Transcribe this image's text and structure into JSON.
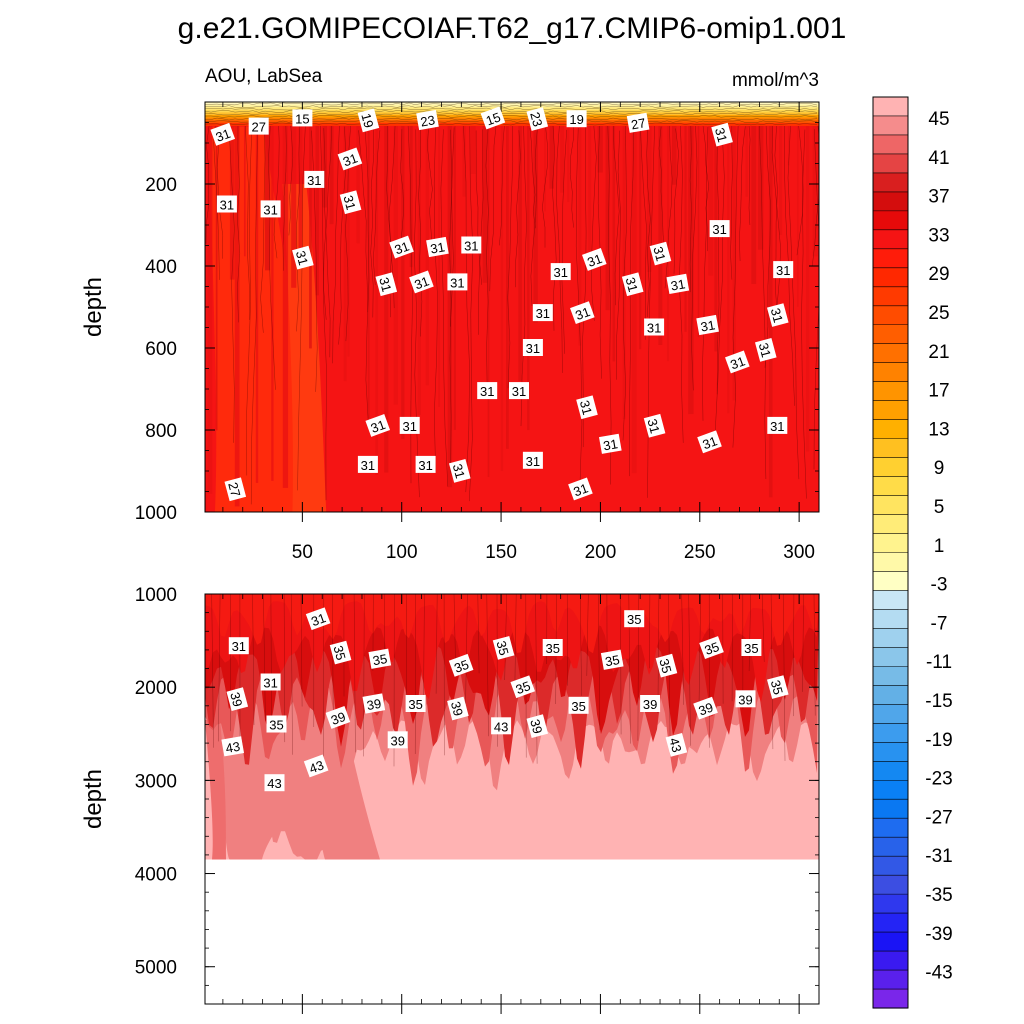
{
  "chart_data": {
    "type": "heatmap",
    "title": "g.e21.GOMIPECOIAF.T62_g17.CMIP6-omip1.001",
    "left_subtitle": "AOU, LabSea",
    "right_subtitle": "mmol/m^3",
    "x_ticks": [
      50,
      100,
      150,
      200,
      250,
      300
    ],
    "x_range": [
      1,
      310
    ],
    "panels": [
      {
        "name": "upper",
        "ylabel": "depth",
        "ylim": [
          0,
          1000
        ],
        "y_ticks": [
          200,
          400,
          600,
          800,
          1000
        ],
        "dominant_value": 31,
        "contour_labels": [
          {
            "x": 10,
            "depth": 80,
            "v": "31"
          },
          {
            "x": 28,
            "depth": 60,
            "v": "27"
          },
          {
            "x": 50,
            "depth": 40,
            "v": "15"
          },
          {
            "x": 83,
            "depth": 45,
            "v": "19"
          },
          {
            "x": 113,
            "depth": 45,
            "v": "23"
          },
          {
            "x": 146,
            "depth": 40,
            "v": "15"
          },
          {
            "x": 168,
            "depth": 42,
            "v": "23"
          },
          {
            "x": 188,
            "depth": 42,
            "v": "19"
          },
          {
            "x": 219,
            "depth": 52,
            "v": "27"
          },
          {
            "x": 261,
            "depth": 80,
            "v": "31"
          },
          {
            "x": 74,
            "depth": 140,
            "v": "31"
          },
          {
            "x": 56,
            "depth": 190,
            "v": "31"
          },
          {
            "x": 74,
            "depth": 245,
            "v": "31"
          },
          {
            "x": 12,
            "depth": 250,
            "v": "31"
          },
          {
            "x": 34,
            "depth": 262,
            "v": "31"
          },
          {
            "x": 100,
            "depth": 355,
            "v": "31"
          },
          {
            "x": 118,
            "depth": 355,
            "v": "31"
          },
          {
            "x": 135,
            "depth": 350,
            "v": "31"
          },
          {
            "x": 50,
            "depth": 380,
            "v": "31"
          },
          {
            "x": 180,
            "depth": 415,
            "v": "31"
          },
          {
            "x": 197,
            "depth": 385,
            "v": "31"
          },
          {
            "x": 230,
            "depth": 370,
            "v": "31"
          },
          {
            "x": 260,
            "depth": 310,
            "v": "31"
          },
          {
            "x": 292,
            "depth": 410,
            "v": "31"
          },
          {
            "x": 92,
            "depth": 445,
            "v": "31"
          },
          {
            "x": 110,
            "depth": 440,
            "v": "31"
          },
          {
            "x": 128,
            "depth": 440,
            "v": "31"
          },
          {
            "x": 216,
            "depth": 445,
            "v": "31"
          },
          {
            "x": 239,
            "depth": 445,
            "v": "31"
          },
          {
            "x": 171,
            "depth": 515,
            "v": "31"
          },
          {
            "x": 191,
            "depth": 515,
            "v": "31"
          },
          {
            "x": 227,
            "depth": 550,
            "v": "31"
          },
          {
            "x": 254,
            "depth": 545,
            "v": "31"
          },
          {
            "x": 289,
            "depth": 520,
            "v": "31"
          },
          {
            "x": 166,
            "depth": 600,
            "v": "31"
          },
          {
            "x": 269,
            "depth": 635,
            "v": "31"
          },
          {
            "x": 283,
            "depth": 605,
            "v": "31"
          },
          {
            "x": 143,
            "depth": 705,
            "v": "31"
          },
          {
            "x": 159,
            "depth": 705,
            "v": "31"
          },
          {
            "x": 193,
            "depth": 745,
            "v": "31"
          },
          {
            "x": 88,
            "depth": 790,
            "v": "31"
          },
          {
            "x": 104,
            "depth": 790,
            "v": "31"
          },
          {
            "x": 227,
            "depth": 790,
            "v": "31"
          },
          {
            "x": 289,
            "depth": 790,
            "v": "31"
          },
          {
            "x": 205,
            "depth": 835,
            "v": "31"
          },
          {
            "x": 255,
            "depth": 830,
            "v": "31"
          },
          {
            "x": 83,
            "depth": 885,
            "v": "31"
          },
          {
            "x": 112,
            "depth": 885,
            "v": "31"
          },
          {
            "x": 129,
            "depth": 900,
            "v": "31"
          },
          {
            "x": 166,
            "depth": 875,
            "v": "31"
          },
          {
            "x": 190,
            "depth": 945,
            "v": "31"
          },
          {
            "x": 16,
            "depth": 945,
            "v": "27"
          }
        ]
      },
      {
        "name": "lower",
        "ylabel": "depth",
        "ylim": [
          1000,
          5400
        ],
        "y_ticks": [
          1000,
          2000,
          3000,
          4000,
          5000
        ],
        "bottom_depth": 3850,
        "contour_labels": [
          {
            "x": 58,
            "depth": 1270,
            "v": "31"
          },
          {
            "x": 217,
            "depth": 1270,
            "v": "35"
          },
          {
            "x": 18,
            "depth": 1560,
            "v": "31"
          },
          {
            "x": 69,
            "depth": 1630,
            "v": "35"
          },
          {
            "x": 89,
            "depth": 1700,
            "v": "35"
          },
          {
            "x": 130,
            "depth": 1770,
            "v": "35"
          },
          {
            "x": 151,
            "depth": 1580,
            "v": "35"
          },
          {
            "x": 176,
            "depth": 1580,
            "v": "35"
          },
          {
            "x": 206,
            "depth": 1710,
            "v": "35"
          },
          {
            "x": 233,
            "depth": 1770,
            "v": "35"
          },
          {
            "x": 256,
            "depth": 1580,
            "v": "35"
          },
          {
            "x": 276,
            "depth": 1580,
            "v": "35"
          },
          {
            "x": 17,
            "depth": 2130,
            "v": "39"
          },
          {
            "x": 34,
            "depth": 1950,
            "v": "31"
          },
          {
            "x": 37,
            "depth": 2400,
            "v": "35"
          },
          {
            "x": 68,
            "depth": 2330,
            "v": "39"
          },
          {
            "x": 86,
            "depth": 2180,
            "v": "39"
          },
          {
            "x": 107,
            "depth": 2180,
            "v": "35"
          },
          {
            "x": 128,
            "depth": 2230,
            "v": "39"
          },
          {
            "x": 150,
            "depth": 2420,
            "v": "43"
          },
          {
            "x": 161,
            "depth": 2000,
            "v": "35"
          },
          {
            "x": 168,
            "depth": 2420,
            "v": "39"
          },
          {
            "x": 189,
            "depth": 2200,
            "v": "35"
          },
          {
            "x": 225,
            "depth": 2180,
            "v": "39"
          },
          {
            "x": 238,
            "depth": 2620,
            "v": "43"
          },
          {
            "x": 253,
            "depth": 2230,
            "v": "39"
          },
          {
            "x": 273,
            "depth": 2130,
            "v": "39"
          },
          {
            "x": 289,
            "depth": 2000,
            "v": "35"
          },
          {
            "x": 15,
            "depth": 2640,
            "v": "43"
          },
          {
            "x": 98,
            "depth": 2570,
            "v": "39"
          },
          {
            "x": 57,
            "depth": 2850,
            "v": "43"
          },
          {
            "x": 36,
            "depth": 3030,
            "v": "43"
          }
        ]
      }
    ],
    "colorbar": {
      "labels": [
        "45",
        "41",
        "37",
        "33",
        "29",
        "25",
        "21",
        "17",
        "13",
        "9",
        "5",
        "1",
        "-3",
        "-7",
        "-11",
        "-15",
        "-19",
        "-23",
        "-27",
        "-31",
        "-35",
        "-39",
        "-43"
      ],
      "colors": [
        "#ffb3b3",
        "#f58c8c",
        "#ee6666",
        "#e54444",
        "#d91f1f",
        "#d40d0d",
        "#e60a0a",
        "#f51414",
        "#ff1c0a",
        "#ff2800",
        "#ff3a00",
        "#ff4c00",
        "#ff5e00",
        "#ff7000",
        "#ff8200",
        "#ff9400",
        "#ffa000",
        "#ffb000",
        "#ffc020",
        "#ffd030",
        "#ffdc48",
        "#ffe460",
        "#ffec78",
        "#fff38e",
        "#fff9a8",
        "#ffffc4",
        "#c8e6f5",
        "#b4dcf2",
        "#9fd1ee",
        "#8bc6ea",
        "#77bbe7",
        "#63b0e6",
        "#50a6ea",
        "#3c9cee",
        "#2892f0",
        "#1488f2",
        "#0a80f5",
        "#0a78f2",
        "#1e6cf0",
        "#2862ea",
        "#3258e6",
        "#3c4ee2",
        "#2f38ee",
        "#2424f5",
        "#1a14f5",
        "#3a1af0",
        "#5a20ec",
        "#7a26ea"
      ]
    }
  }
}
